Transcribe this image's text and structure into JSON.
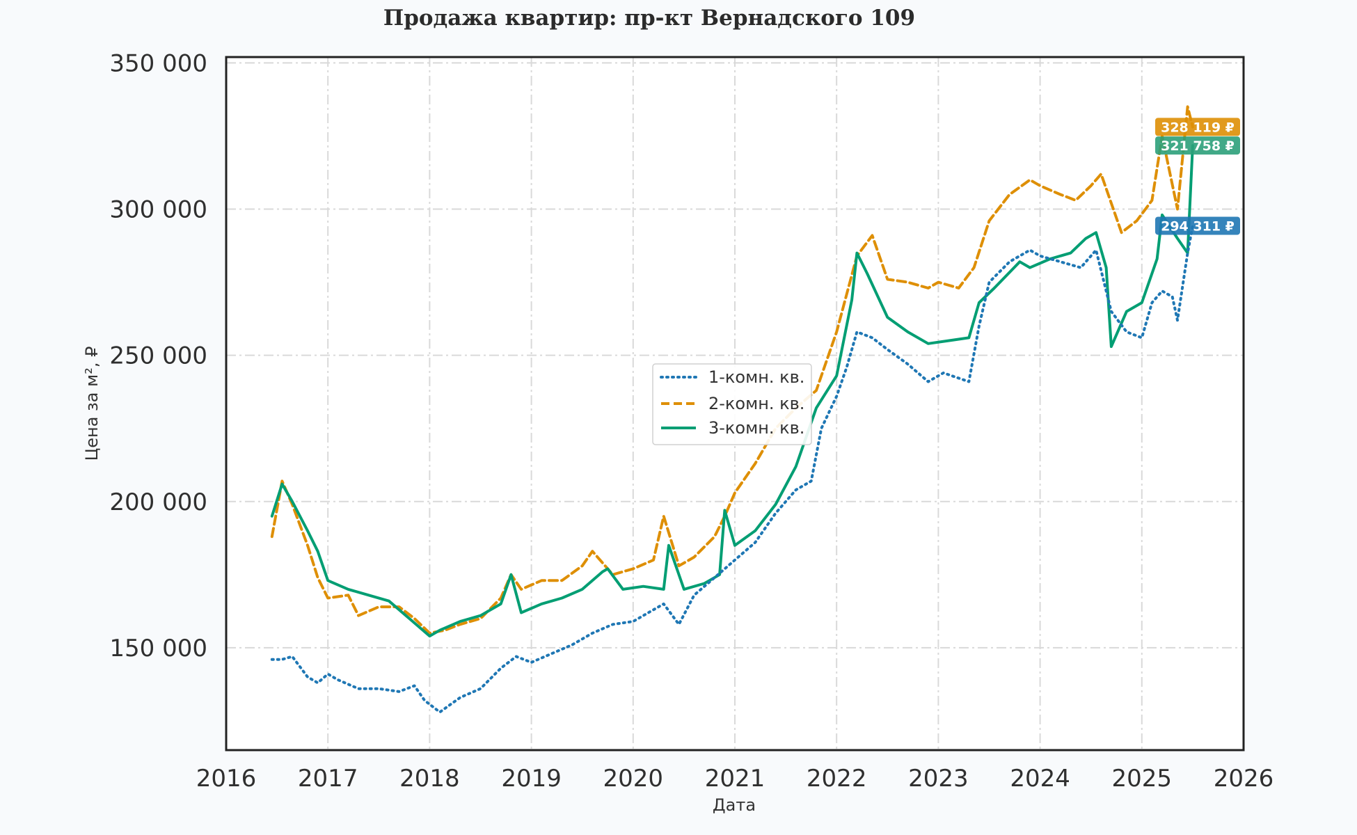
{
  "chart_data": {
    "type": "line",
    "title": "Продажа квартир: пр-кт Вернадского 109",
    "xlabel": "Дата",
    "ylabel": "Цена за м², ₽",
    "xlim": [
      2016,
      2026
    ],
    "ylim": [
      115000,
      352000
    ],
    "x_ticks": [
      2016,
      2017,
      2018,
      2019,
      2020,
      2021,
      2022,
      2023,
      2024,
      2025,
      2026
    ],
    "x_tick_labels": [
      "2016",
      "2017",
      "2018",
      "2019",
      "2020",
      "2021",
      "2022",
      "2023",
      "2024",
      "2025",
      "2026"
    ],
    "y_ticks": [
      150000,
      200000,
      250000,
      300000,
      350000
    ],
    "y_tick_labels": [
      "150 000",
      "200 000",
      "250 000",
      "300 000",
      "350 000"
    ],
    "grid": true,
    "legend_position": "center",
    "series": [
      {
        "name": "1-комн. кв.",
        "color": "#1f77b4",
        "style": "dotted",
        "x": [
          2016.45,
          2016.55,
          2016.65,
          2016.8,
          2016.9,
          2017.0,
          2017.1,
          2017.3,
          2017.5,
          2017.7,
          2017.85,
          2017.95,
          2018.1,
          2018.3,
          2018.5,
          2018.7,
          2018.85,
          2019.0,
          2019.2,
          2019.4,
          2019.6,
          2019.8,
          2020.0,
          2020.2,
          2020.3,
          2020.45,
          2020.6,
          2020.8,
          2021.0,
          2021.2,
          2021.4,
          2021.6,
          2021.75,
          2021.85,
          2022.0,
          2022.1,
          2022.2,
          2022.35,
          2022.5,
          2022.7,
          2022.9,
          2023.05,
          2023.3,
          2023.4,
          2023.5,
          2023.7,
          2023.9,
          2024.0,
          2024.2,
          2024.4,
          2024.55,
          2024.7,
          2024.85,
          2025.0,
          2025.1,
          2025.2,
          2025.3,
          2025.35,
          2025.45,
          2025.5
        ],
        "y": [
          146000,
          146000,
          147000,
          140000,
          138000,
          141000,
          139000,
          136000,
          136000,
          135000,
          137000,
          132000,
          128000,
          133000,
          136000,
          143000,
          147000,
          145000,
          148000,
          151000,
          155000,
          158000,
          159000,
          163000,
          165000,
          158000,
          168000,
          174000,
          180000,
          186000,
          196000,
          204000,
          207000,
          225000,
          236000,
          246000,
          258000,
          256000,
          252000,
          247000,
          241000,
          244000,
          241000,
          260000,
          275000,
          282000,
          286000,
          284000,
          282000,
          280000,
          286000,
          265000,
          258000,
          256000,
          268000,
          272000,
          270000,
          262000,
          285000,
          294311
        ]
      },
      {
        "name": "2-комн. кв.",
        "color": "#de8f05",
        "style": "dashed",
        "x": [
          2016.45,
          2016.55,
          2016.65,
          2016.8,
          2016.9,
          2017.0,
          2017.2,
          2017.3,
          2017.5,
          2017.7,
          2017.85,
          2018.0,
          2018.15,
          2018.3,
          2018.5,
          2018.7,
          2018.8,
          2018.9,
          2019.1,
          2019.3,
          2019.5,
          2019.6,
          2019.8,
          2020.0,
          2020.2,
          2020.3,
          2020.45,
          2020.6,
          2020.8,
          2020.9,
          2021.0,
          2021.2,
          2021.4,
          2021.6,
          2021.8,
          2022.0,
          2022.2,
          2022.35,
          2022.5,
          2022.7,
          2022.9,
          2023.0,
          2023.2,
          2023.35,
          2023.5,
          2023.7,
          2023.9,
          2024.0,
          2024.2,
          2024.35,
          2024.5,
          2024.6,
          2024.8,
          2024.95,
          2025.1,
          2025.2,
          2025.35,
          2025.45,
          2025.5
        ],
        "y": [
          188000,
          207000,
          199000,
          185000,
          174000,
          167000,
          168000,
          161000,
          164000,
          164000,
          160000,
          155000,
          156000,
          158000,
          160000,
          167000,
          175000,
          170000,
          173000,
          173000,
          178000,
          183000,
          175000,
          177000,
          180000,
          195000,
          178000,
          181000,
          188000,
          195000,
          203000,
          213000,
          225000,
          232000,
          238000,
          258000,
          284000,
          291000,
          276000,
          275000,
          273000,
          275000,
          273000,
          280000,
          296000,
          305000,
          310000,
          308000,
          305000,
          303000,
          308000,
          312000,
          292000,
          296000,
          303000,
          325000,
          300000,
          335000,
          328119
        ]
      },
      {
        "name": "3-комн. кв.",
        "color": "#029e73",
        "style": "solid",
        "x": [
          2016.45,
          2016.55,
          2016.65,
          2016.8,
          2016.9,
          2017.0,
          2017.2,
          2017.4,
          2017.6,
          2017.8,
          2018.0,
          2018.1,
          2018.3,
          2018.5,
          2018.7,
          2018.8,
          2018.9,
          2019.1,
          2019.3,
          2019.5,
          2019.7,
          2019.75,
          2019.9,
          2020.1,
          2020.3,
          2020.35,
          2020.5,
          2020.7,
          2020.85,
          2020.9,
          2021.0,
          2021.2,
          2021.4,
          2021.6,
          2021.8,
          2022.0,
          2022.15,
          2022.2,
          2022.3,
          2022.5,
          2022.7,
          2022.9,
          2023.1,
          2023.3,
          2023.4,
          2023.55,
          2023.8,
          2023.9,
          2024.1,
          2024.3,
          2024.45,
          2024.55,
          2024.65,
          2024.7,
          2024.85,
          2025.0,
          2025.15,
          2025.2,
          2025.35,
          2025.45,
          2025.5
        ],
        "y": [
          195000,
          206000,
          200000,
          190000,
          183000,
          173000,
          170000,
          168000,
          166000,
          160000,
          154000,
          156000,
          159000,
          161000,
          165000,
          175000,
          162000,
          165000,
          167000,
          170000,
          176000,
          177000,
          170000,
          171000,
          170000,
          185000,
          170000,
          172000,
          175000,
          197000,
          185000,
          190000,
          199000,
          212000,
          232000,
          243000,
          269000,
          285000,
          278000,
          263000,
          258000,
          254000,
          255000,
          256000,
          268000,
          273000,
          282000,
          280000,
          283000,
          285000,
          290000,
          292000,
          280000,
          253000,
          265000,
          268000,
          283000,
          298000,
          290000,
          285000,
          321758
        ]
      }
    ],
    "last_value_labels": [
      {
        "series": "2-комн. кв.",
        "text": "328 119 ₽",
        "value": 328119,
        "color": "#de8f05"
      },
      {
        "series": "3-комн. кв.",
        "text": "321 758 ₽",
        "value": 321758,
        "color": "#2ca07a"
      },
      {
        "series": "1-комн. кв.",
        "text": "294 311 ₽",
        "value": 294311,
        "color": "#1f77b4"
      }
    ]
  }
}
